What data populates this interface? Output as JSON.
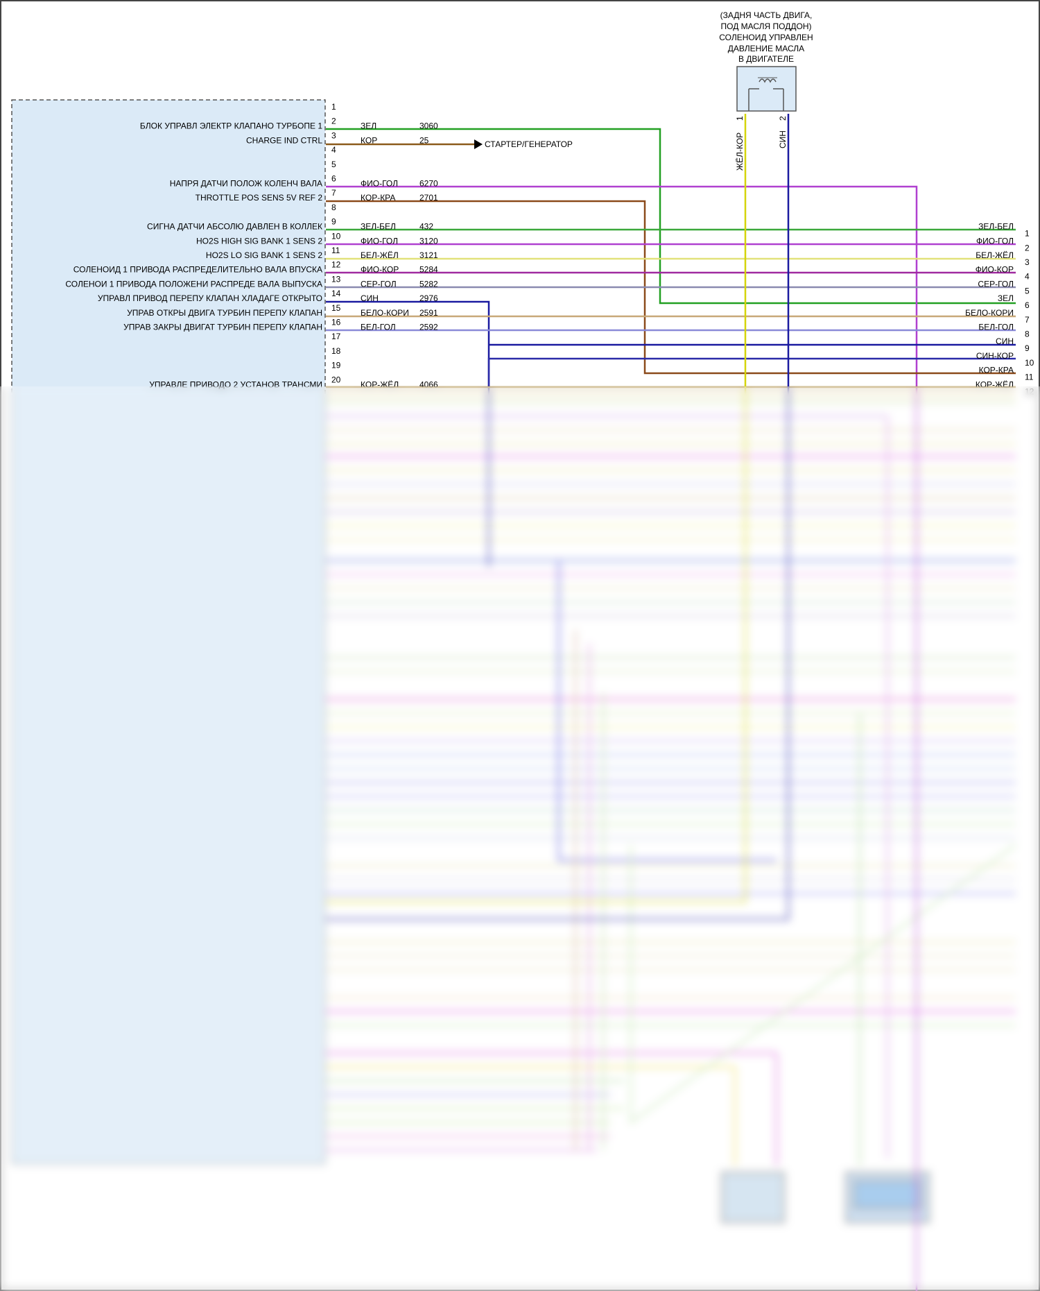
{
  "diagram": {
    "connector_top": {
      "caption": [
        "(ЗАДНЯ ЧАСТЬ ДВИГА,",
        "ПОД МАСЛЯ ПОДДОН)",
        "СОЛЕНОИД УПРАВЛЕН",
        "ДАВЛЕНИЕ МАСЛА",
        "В ДВИГАТЕЛЕ"
      ],
      "pins": [
        {
          "num": "1",
          "color_code": "ЖЁЛ-КОР",
          "color": "#d4d40a"
        },
        {
          "num": "2",
          "color_code": "СИН",
          "color": "#1a1aa0"
        }
      ]
    },
    "starter_label": "СТАРТЕР/ГЕНЕРАТОР",
    "pins": [
      {
        "num": "1",
        "label": "",
        "code": "",
        "circuit": "",
        "right_code": "",
        "right_num": "",
        "color": ""
      },
      {
        "num": "2",
        "label": "БЛОК УПРАВЛ ЭЛЕКТР КЛАПАНО ТУРБОПЕ 1",
        "code": "ЗЕЛ",
        "circuit": "3060",
        "right_code": "",
        "right_num": "",
        "color": "#22a022"
      },
      {
        "num": "3",
        "label": "CHARGE IND CTRL",
        "code": "КОР",
        "circuit": "25",
        "right_code": "",
        "right_num": "",
        "color": "#8b5a1a"
      },
      {
        "num": "4",
        "label": "",
        "code": "",
        "circuit": "",
        "right_code": "",
        "right_num": "",
        "color": ""
      },
      {
        "num": "5",
        "label": "",
        "code": "",
        "circuit": "",
        "right_code": "",
        "right_num": "",
        "color": ""
      },
      {
        "num": "6",
        "label": "НАПРЯ ДАТЧИ ПОЛОЖ КОЛЕНЧ ВАЛА",
        "code": "ФИО-ГОЛ",
        "circuit": "6270",
        "right_code": "",
        "right_num": "",
        "color": "#b040d0"
      },
      {
        "num": "7",
        "label": "THROTTLE POS SENS 5V REF 2",
        "code": "КОР-КРА",
        "circuit": "2701",
        "right_code": "",
        "right_num": "",
        "color": "#8b4a1a"
      },
      {
        "num": "8",
        "label": "",
        "code": "",
        "circuit": "",
        "right_code": "",
        "right_num": "",
        "color": ""
      },
      {
        "num": "9",
        "label": "СИГНА ДАТЧИ АБСОЛЮ ДАВЛЕН В КОЛЛЕК",
        "code": "ЗЕЛ-БЕЛ",
        "circuit": "432",
        "right_code": "ЗЕЛ-БЕЛ",
        "right_num": "1",
        "color": "#3aa83a"
      },
      {
        "num": "10",
        "label": "HO2S HIGH SIG BANK 1 SENS 2",
        "code": "ФИО-ГОЛ",
        "circuit": "3120",
        "right_code": "ФИО-ГОЛ",
        "right_num": "2",
        "color": "#b040d0"
      },
      {
        "num": "11",
        "label": "HO2S LO SIG BANK 1 SENS 2",
        "code": "БЕЛ-ЖЁЛ",
        "circuit": "3121",
        "right_code": "БЕЛ-ЖЁЛ",
        "right_num": "3",
        "color": "#e2e27a"
      },
      {
        "num": "12",
        "label": "СОЛЕНОИД 1 ПРИВОДА РАСПРЕДЕЛИТЕЛЬНО ВАЛА ВПУСКА",
        "code": "ФИО-КОР",
        "circuit": "5284",
        "right_code": "ФИО-КОР",
        "right_num": "4",
        "color": "#a02aa0"
      },
      {
        "num": "13",
        "label": "СОЛЕНОИ 1 ПРИВОДА ПОЛОЖЕНИ РАСПРЕДЕ ВАЛА ВЫПУСКА",
        "code": "СЕР-ГОЛ",
        "circuit": "5282",
        "right_code": "СЕР-ГОЛ",
        "right_num": "5",
        "color": "#8a8ab0"
      },
      {
        "num": "14",
        "label": "УПРАВЛ ПРИВОД ПЕРЕПУ КЛАПАН ХЛАДАГЕ ОТКРЫТО",
        "code": "СИН",
        "circuit": "2976",
        "right_code": "ЗЕЛ",
        "right_num": "6",
        "color": "#1a1aa0"
      },
      {
        "num": "15",
        "label": "УПРАВ ОТКРЫ ДВИГА ТУРБИН ПЕРЕПУ КЛАПАН",
        "code": "БЕЛО-КОРИ",
        "circuit": "2591",
        "right_code": "БЕЛО-КОРИ",
        "right_num": "7",
        "color": "#c8a878"
      },
      {
        "num": "16",
        "label": "УПРАВ ЗАКРЫ ДВИГАТ ТУРБИН ПЕРЕПУ КЛАПАН",
        "code": "БЕЛ-ГОЛ",
        "circuit": "2592",
        "right_code": "БЕЛ-ГОЛ",
        "right_num": "8",
        "color": "#8a8ad8"
      },
      {
        "num": "17",
        "label": "",
        "code": "",
        "circuit": "",
        "right_code": "СИН",
        "right_num": "9",
        "color": ""
      },
      {
        "num": "18",
        "label": "",
        "code": "",
        "circuit": "",
        "right_code": "СИН-КОР",
        "right_num": "10",
        "color": ""
      },
      {
        "num": "19",
        "label": "",
        "code": "",
        "circuit": "",
        "right_code": "КОР-КРА",
        "right_num": "11",
        "color": ""
      },
      {
        "num": "20",
        "label": "УПРАВЛЕ ПРИВОДО 2 УСТАНОВ ТРАНСМИ",
        "code": "КОР-ЖЁЛ",
        "circuit": "4066",
        "right_code": "КОР-ЖЁЛ",
        "right_num": "12",
        "color": "#a07a2a"
      }
    ]
  }
}
